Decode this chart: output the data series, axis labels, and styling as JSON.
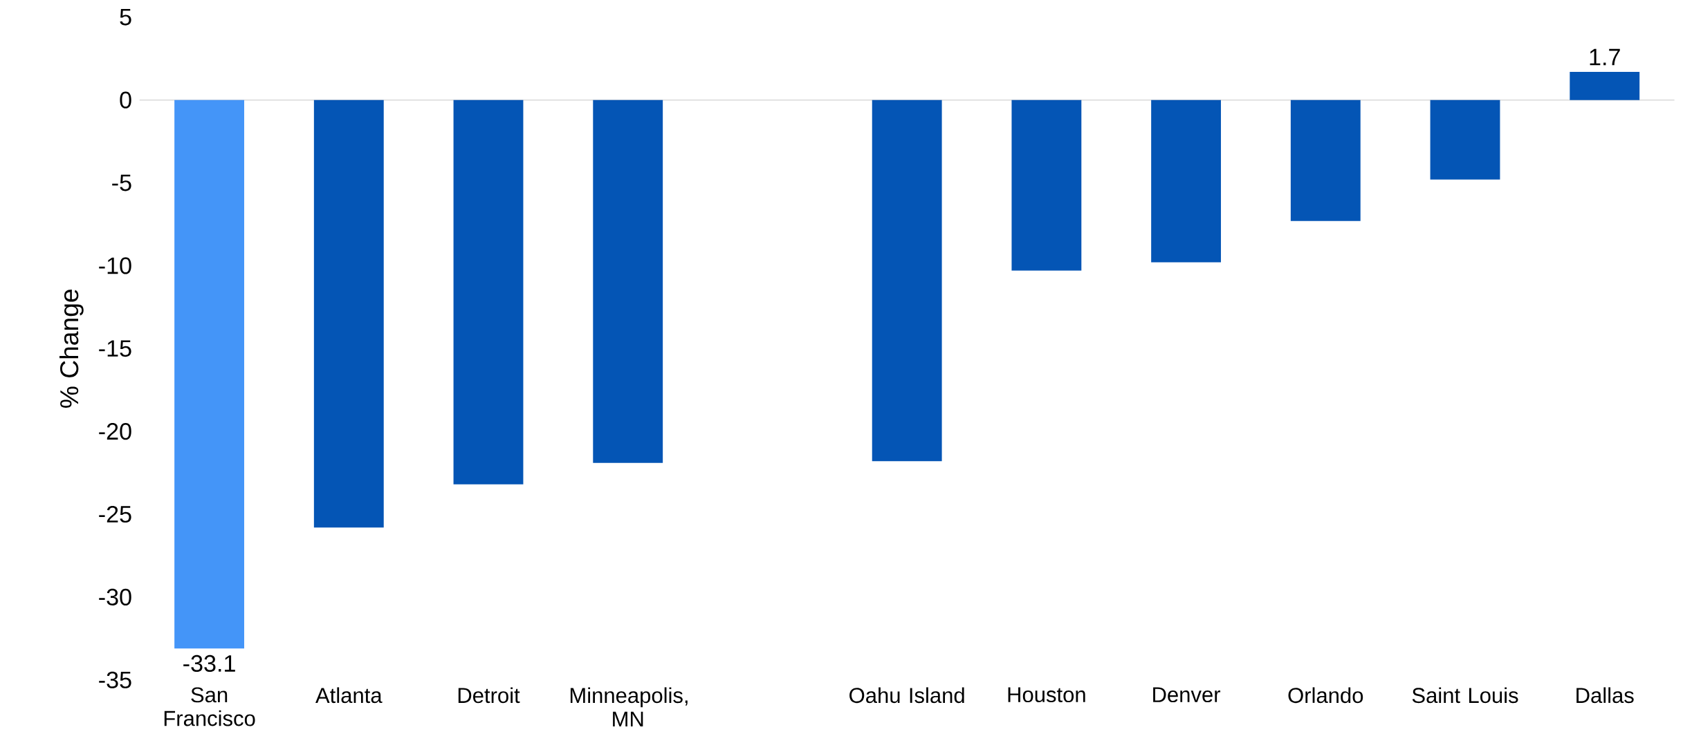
{
  "chart_data": {
    "type": "bar",
    "ylabel": "% Change",
    "categories": [
      "San Francisco",
      "Atlanta",
      "Detroit",
      "Minneapolis, MN",
      null,
      "Oahu Island",
      "Houston",
      "Denver",
      "Orlando",
      "Saint Louis",
      "Dallas"
    ],
    "values": [
      -33.1,
      -25.8,
      -23.2,
      -21.9,
      null,
      -21.8,
      -10.3,
      -9.8,
      -7.3,
      -4.8,
      1.7
    ],
    "colors": [
      "#4495f8",
      "#0455b5",
      "#0455b5",
      "#0455b5",
      "#0455b5",
      "#0455b5",
      "#0455b5",
      "#0455b5",
      "#0455b5",
      "#0455b5",
      "#0455b5"
    ],
    "value_labels": [
      "-33.1",
      null,
      null,
      null,
      null,
      null,
      null,
      null,
      null,
      null,
      "1.7"
    ],
    "ylim": [
      -35,
      5
    ],
    "yticks": [
      5,
      0,
      -5,
      -10,
      -15,
      -20,
      -25,
      -30,
      -35
    ],
    "ref_lines": [
      {
        "axis": "y",
        "value": 0,
        "color": "#d9d9d9"
      }
    ]
  }
}
